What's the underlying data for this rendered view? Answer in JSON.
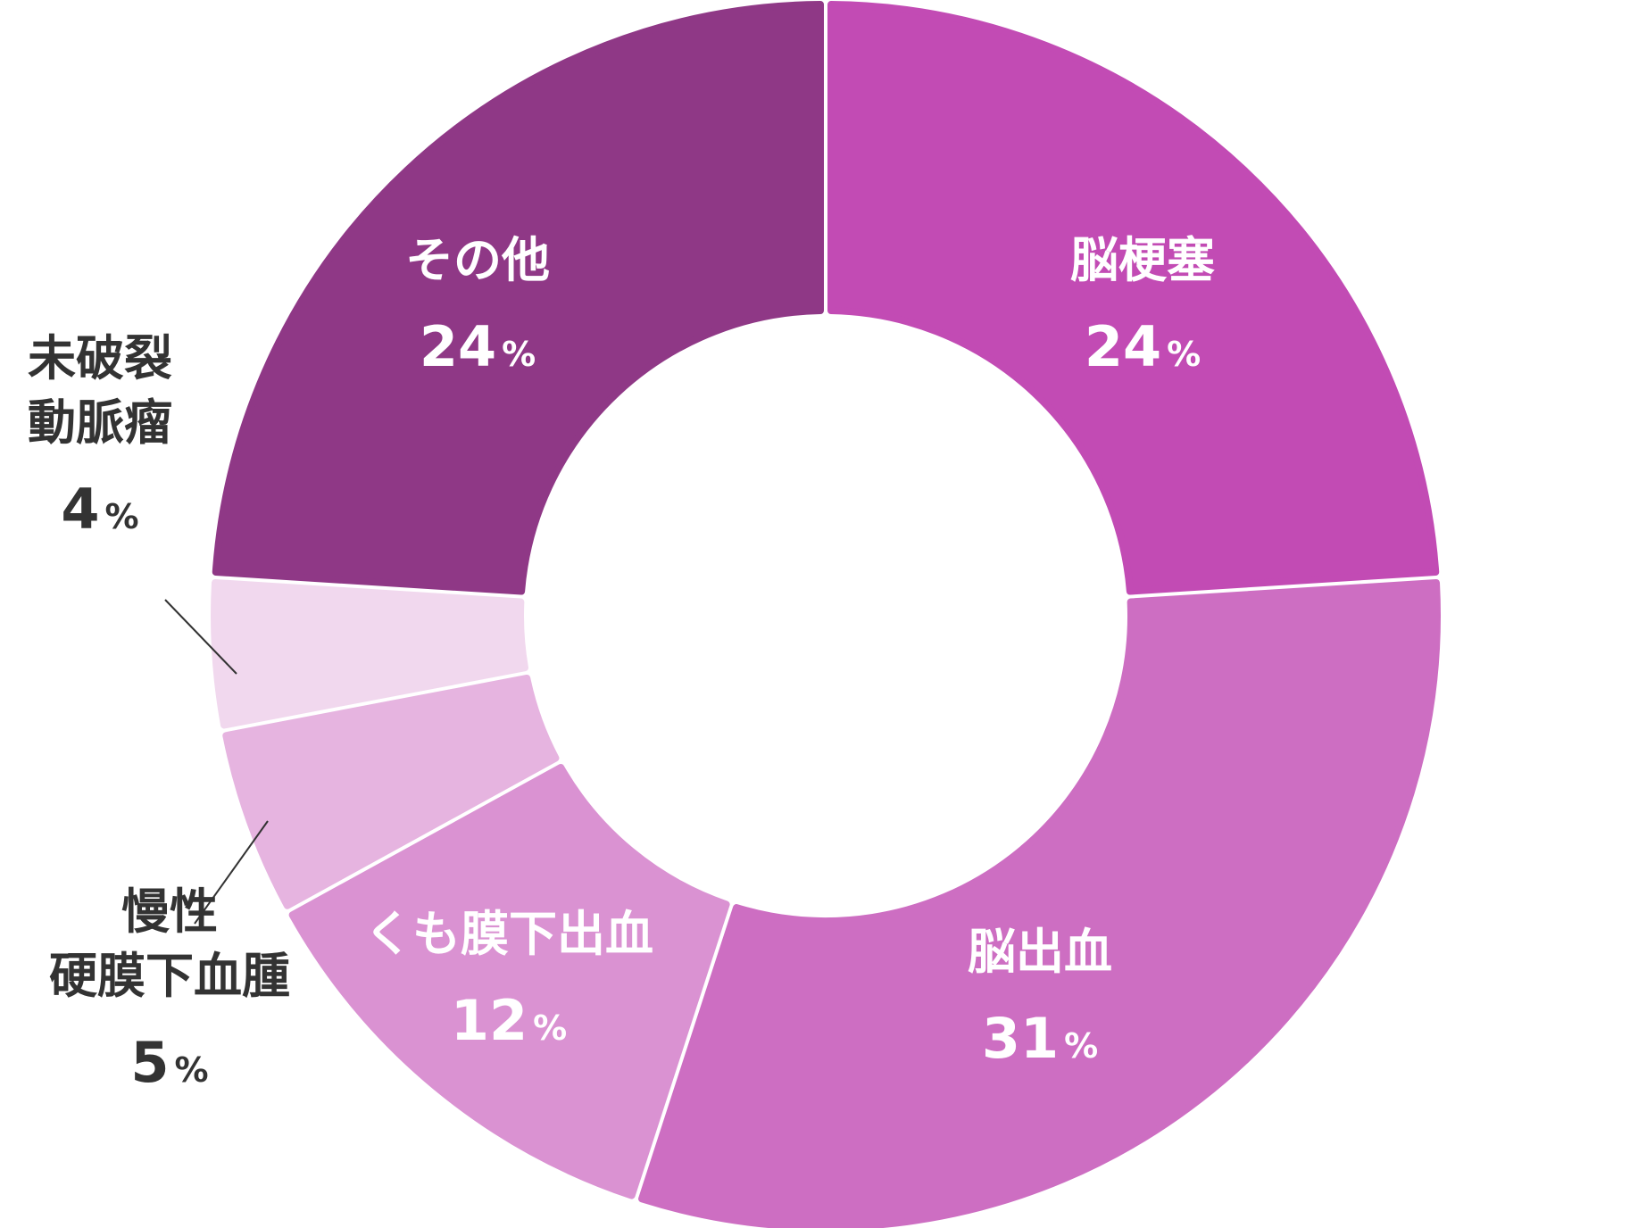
{
  "chart_data": {
    "type": "pie",
    "donut": true,
    "title": "",
    "unit": "%",
    "slices": [
      {
        "name": "脳梗塞",
        "name_lines": [
          "脳梗塞"
        ],
        "value": 24,
        "color": "#c24bb4",
        "label": "inside"
      },
      {
        "name": "脳出血",
        "name_lines": [
          "脳出血"
        ],
        "value": 31,
        "color": "#cd6ec2",
        "label": "inside"
      },
      {
        "name": "くも膜下出血",
        "name_lines": [
          "くも膜下出血"
        ],
        "value": 12,
        "color": "#da92d2",
        "label": "inside"
      },
      {
        "name": "慢性硬膜下血腫",
        "name_lines": [
          "慢性",
          "硬膜下血腫"
        ],
        "value": 5,
        "color": "#e6b4e0",
        "label": "outside"
      },
      {
        "name": "未破裂動脈瘤",
        "name_lines": [
          "未破裂",
          "動脈瘤"
        ],
        "value": 4,
        "color": "#f1d8ee",
        "label": "outside"
      },
      {
        "name": "その他",
        "name_lines": [
          "その他"
        ],
        "value": 24,
        "color": "#8f3886",
        "label": "inside"
      }
    ]
  }
}
